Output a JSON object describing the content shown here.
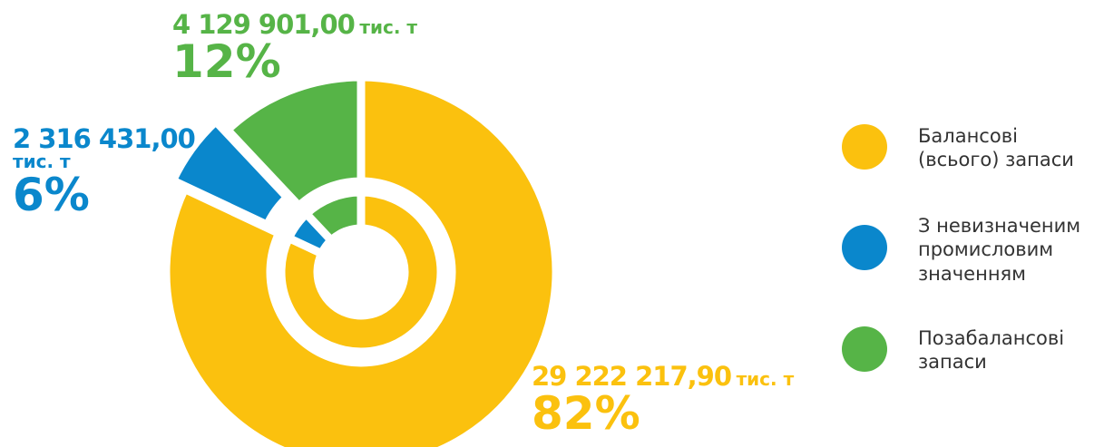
{
  "chart_data": {
    "type": "pie",
    "categories": [
      "Балансові (всього) запаси",
      "З невизначеним промисловим значенням",
      "Позабалансові запаси"
    ],
    "values": [
      82,
      6,
      12
    ],
    "value_labels": [
      "82%",
      "6%",
      "12%"
    ],
    "amounts": [
      29222217.9,
      2316431,
      4129901
    ],
    "amount_labels": [
      "29 222 217,90",
      "2 316 431,00",
      "4 129 901,00"
    ],
    "unit": "тис. т",
    "colors": [
      "#fbc10e",
      "#0a87cc",
      "#56b447"
    ],
    "exploded": [
      false,
      true,
      false
    ]
  }
}
